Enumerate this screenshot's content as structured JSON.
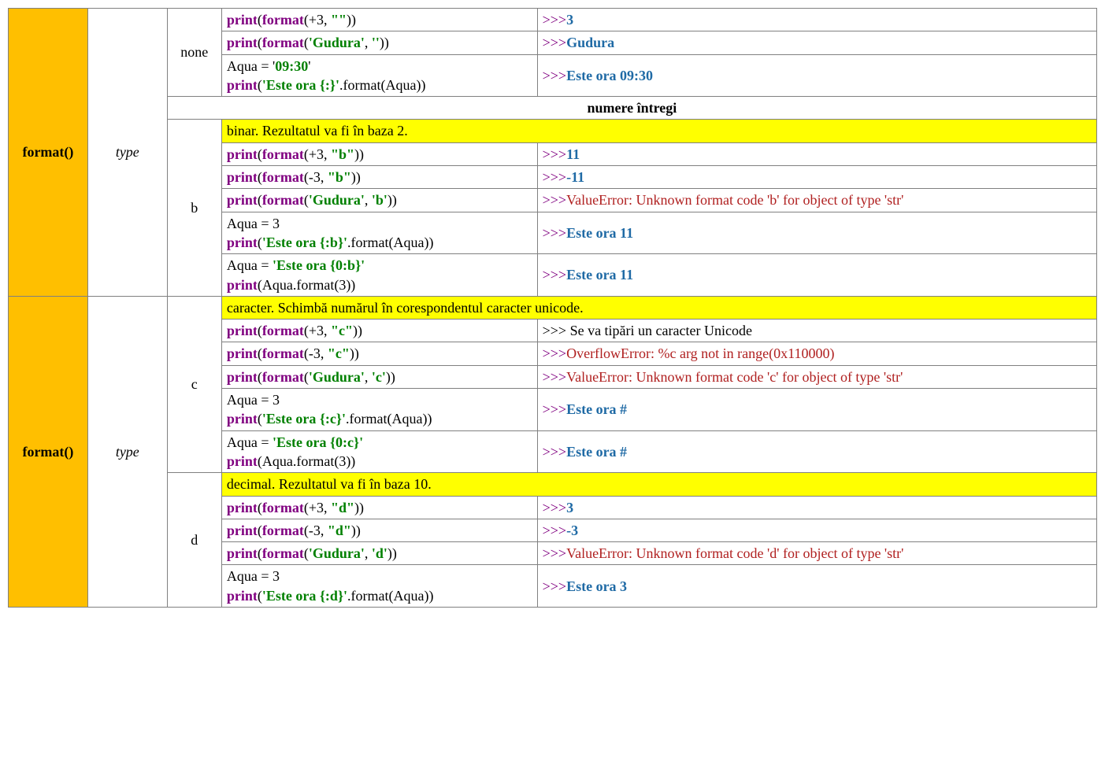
{
  "func_label": "format()",
  "cat_label": "type",
  "section_header": "numere întregi",
  "colors": {
    "func_bg": "#ffbf00",
    "desc_bg": "#ffff00",
    "border": "#808080",
    "keyword": "#800080",
    "string": "#008000",
    "output": "#1f6aa5",
    "error": "#b02020"
  },
  "specs": {
    "none": {
      "label": "none",
      "rows": [
        {
          "code": [
            {
              "t": "print",
              "c": "kw"
            },
            {
              "t": "(",
              "c": "p"
            },
            {
              "t": "format",
              "c": "kw"
            },
            {
              "t": "(+3, ",
              "c": "p"
            },
            {
              "t": "\"\"",
              "c": "str"
            },
            {
              "t": "))",
              "c": "p"
            }
          ],
          "out": [
            {
              "t": ">>>",
              "c": "prm"
            },
            {
              "t": "3",
              "c": "out"
            }
          ]
        },
        {
          "code": [
            {
              "t": "print",
              "c": "kw"
            },
            {
              "t": "(",
              "c": "p"
            },
            {
              "t": "format",
              "c": "kw"
            },
            {
              "t": "(",
              "c": "p"
            },
            {
              "t": "'Gudura'",
              "c": "str"
            },
            {
              "t": ", ",
              "c": "p"
            },
            {
              "t": "''",
              "c": "str"
            },
            {
              "t": "))",
              "c": "p"
            }
          ],
          "out": [
            {
              "t": ">>>",
              "c": "prm"
            },
            {
              "t": "Gudura",
              "c": "out"
            }
          ]
        },
        {
          "code": [
            {
              "t": "Aqua = '",
              "c": "p"
            },
            {
              "t": "09:30",
              "c": "str"
            },
            {
              "t": "'",
              "c": "p"
            },
            {
              "t": "\n",
              "c": "br"
            },
            {
              "t": "print",
              "c": "kw"
            },
            {
              "t": "(",
              "c": "p"
            },
            {
              "t": "'Este ora {:}'",
              "c": "str"
            },
            {
              "t": ".format(Aqua))",
              "c": "p"
            }
          ],
          "out": [
            {
              "t": ">>>",
              "c": "prm"
            },
            {
              "t": "Este ora 09:30",
              "c": "out"
            }
          ]
        }
      ]
    },
    "b": {
      "label": "b",
      "desc": "binar. Rezultatul va fi în baza 2.",
      "rows": [
        {
          "code": [
            {
              "t": "print",
              "c": "kw"
            },
            {
              "t": "(",
              "c": "p"
            },
            {
              "t": "format",
              "c": "kw"
            },
            {
              "t": "(+3, ",
              "c": "p"
            },
            {
              "t": "\"b\"",
              "c": "str"
            },
            {
              "t": "))",
              "c": "p"
            }
          ],
          "out": [
            {
              "t": ">>>",
              "c": "prm"
            },
            {
              "t": "11",
              "c": "out"
            }
          ]
        },
        {
          "code": [
            {
              "t": "print",
              "c": "kw"
            },
            {
              "t": "(",
              "c": "p"
            },
            {
              "t": "format",
              "c": "kw"
            },
            {
              "t": "(-3, ",
              "c": "p"
            },
            {
              "t": "\"b\"",
              "c": "str"
            },
            {
              "t": "))",
              "c": "p"
            }
          ],
          "out": [
            {
              "t": ">>>",
              "c": "prm"
            },
            {
              "t": "-11",
              "c": "out"
            }
          ]
        },
        {
          "code": [
            {
              "t": "print",
              "c": "kw"
            },
            {
              "t": "(",
              "c": "p"
            },
            {
              "t": "format",
              "c": "kw"
            },
            {
              "t": "(",
              "c": "p"
            },
            {
              "t": "'Gudura'",
              "c": "str"
            },
            {
              "t": ", ",
              "c": "p"
            },
            {
              "t": "'b'",
              "c": "str"
            },
            {
              "t": "))",
              "c": "p"
            }
          ],
          "out": [
            {
              "t": ">>>",
              "c": "prm"
            },
            {
              "t": "ValueError: Unknown format code 'b' for object of type 'str'",
              "c": "err"
            }
          ]
        },
        {
          "code": [
            {
              "t": "Aqua = 3",
              "c": "p"
            },
            {
              "t": "\n",
              "c": "br"
            },
            {
              "t": "print",
              "c": "kw"
            },
            {
              "t": "(",
              "c": "p"
            },
            {
              "t": "'Este ora {:b}'",
              "c": "str"
            },
            {
              "t": ".format(Aqua))",
              "c": "p"
            }
          ],
          "out": [
            {
              "t": ">>>",
              "c": "prm"
            },
            {
              "t": "Este ora 11",
              "c": "out"
            }
          ]
        },
        {
          "code": [
            {
              "t": "Aqua = ",
              "c": "p"
            },
            {
              "t": "'Este ora {0:b}'",
              "c": "str"
            },
            {
              "t": "\n",
              "c": "br"
            },
            {
              "t": "print",
              "c": "kw"
            },
            {
              "t": "(Aqua.format(3))",
              "c": "p"
            }
          ],
          "out": [
            {
              "t": ">>>",
              "c": "prm"
            },
            {
              "t": "Este ora 11",
              "c": "out"
            }
          ]
        }
      ]
    },
    "c": {
      "label": "c",
      "desc": "caracter. Schimbă numărul în corespondentul caracter unicode.",
      "rows": [
        {
          "code": [
            {
              "t": "print",
              "c": "kw"
            },
            {
              "t": "(",
              "c": "p"
            },
            {
              "t": "format",
              "c": "kw"
            },
            {
              "t": "(+3, ",
              "c": "p"
            },
            {
              "t": "\"c\"",
              "c": "str"
            },
            {
              "t": "))",
              "c": "p"
            }
          ],
          "out": [
            {
              "t": ">>> Se va tipări un caracter Unicode",
              "c": "p"
            }
          ]
        },
        {
          "code": [
            {
              "t": "print",
              "c": "kw"
            },
            {
              "t": "(",
              "c": "p"
            },
            {
              "t": "format",
              "c": "kw"
            },
            {
              "t": "(-3, ",
              "c": "p"
            },
            {
              "t": "\"c\"",
              "c": "str"
            },
            {
              "t": "))",
              "c": "p"
            }
          ],
          "out": [
            {
              "t": ">>>",
              "c": "prm"
            },
            {
              "t": "OverflowError: %c arg not in range(0x110000)",
              "c": "err"
            }
          ]
        },
        {
          "code": [
            {
              "t": "print",
              "c": "kw"
            },
            {
              "t": "(",
              "c": "p"
            },
            {
              "t": "format",
              "c": "kw"
            },
            {
              "t": "(",
              "c": "p"
            },
            {
              "t": "'Gudura'",
              "c": "str"
            },
            {
              "t": ", ",
              "c": "p"
            },
            {
              "t": "'c'",
              "c": "str"
            },
            {
              "t": "))",
              "c": "p"
            }
          ],
          "out": [
            {
              "t": ">>>",
              "c": "prm"
            },
            {
              "t": "ValueError: Unknown format code 'c' for object of type 'str'",
              "c": "err"
            }
          ]
        },
        {
          "code": [
            {
              "t": "Aqua = 3",
              "c": "p"
            },
            {
              "t": "\n",
              "c": "br"
            },
            {
              "t": "print",
              "c": "kw"
            },
            {
              "t": "(",
              "c": "p"
            },
            {
              "t": "'Este ora {:c}'",
              "c": "str"
            },
            {
              "t": ".format(Aqua))",
              "c": "p"
            }
          ],
          "out": [
            {
              "t": ">>>",
              "c": "prm"
            },
            {
              "t": "Este ora #",
              "c": "out"
            }
          ]
        },
        {
          "code": [
            {
              "t": "Aqua = ",
              "c": "p"
            },
            {
              "t": "'Este ora {0:c}'",
              "c": "str"
            },
            {
              "t": "\n",
              "c": "br"
            },
            {
              "t": "print",
              "c": "kw"
            },
            {
              "t": "(Aqua.format(3))",
              "c": "p"
            }
          ],
          "out": [
            {
              "t": ">>>",
              "c": "prm"
            },
            {
              "t": "Este ora #",
              "c": "out"
            }
          ]
        }
      ]
    },
    "d": {
      "label": "d",
      "desc": "decimal. Rezultatul va fi în baza 10.",
      "rows": [
        {
          "code": [
            {
              "t": "print",
              "c": "kw"
            },
            {
              "t": "(",
              "c": "p"
            },
            {
              "t": "format",
              "c": "kw"
            },
            {
              "t": "(+3, ",
              "c": "p"
            },
            {
              "t": "\"d\"",
              "c": "str"
            },
            {
              "t": "))",
              "c": "p"
            }
          ],
          "out": [
            {
              "t": ">>>",
              "c": "prm"
            },
            {
              "t": "3",
              "c": "out"
            }
          ]
        },
        {
          "code": [
            {
              "t": "print",
              "c": "kw"
            },
            {
              "t": "(",
              "c": "p"
            },
            {
              "t": "format",
              "c": "kw"
            },
            {
              "t": "(-3, ",
              "c": "p"
            },
            {
              "t": "\"d\"",
              "c": "str"
            },
            {
              "t": "))",
              "c": "p"
            }
          ],
          "out": [
            {
              "t": ">>>",
              "c": "prm"
            },
            {
              "t": "-3",
              "c": "out"
            }
          ]
        },
        {
          "code": [
            {
              "t": "print",
              "c": "kw"
            },
            {
              "t": "(",
              "c": "p"
            },
            {
              "t": "format",
              "c": "kw"
            },
            {
              "t": "(",
              "c": "p"
            },
            {
              "t": "'Gudura'",
              "c": "str"
            },
            {
              "t": ", ",
              "c": "p"
            },
            {
              "t": "'d'",
              "c": "str"
            },
            {
              "t": "))",
              "c": "p"
            }
          ],
          "out": [
            {
              "t": ">>>",
              "c": "prm"
            },
            {
              "t": "ValueError: Unknown format code 'd' for object of type 'str'",
              "c": "err"
            }
          ]
        },
        {
          "code": [
            {
              "t": "Aqua = 3",
              "c": "p"
            },
            {
              "t": "\n",
              "c": "br"
            },
            {
              "t": "print",
              "c": "kw"
            },
            {
              "t": "(",
              "c": "p"
            },
            {
              "t": "'Este ora {:d}'",
              "c": "str"
            },
            {
              "t": ".format(Aqua))",
              "c": "p"
            }
          ],
          "out": [
            {
              "t": ">>>",
              "c": "prm"
            },
            {
              "t": "Este ora 3",
              "c": "out"
            }
          ]
        }
      ]
    }
  }
}
